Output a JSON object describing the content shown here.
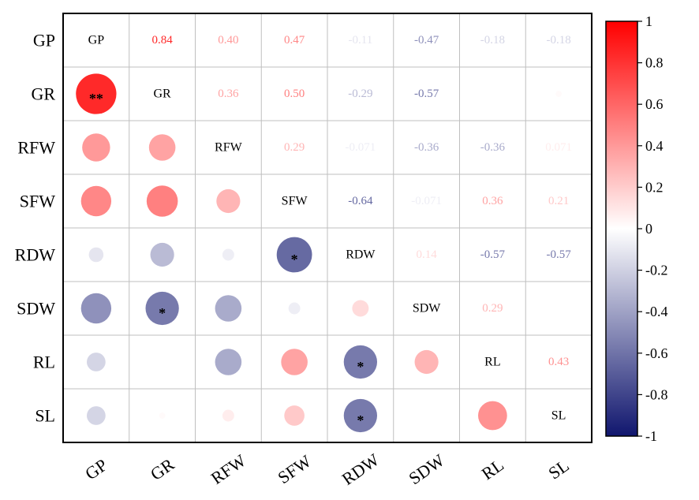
{
  "chart_data": {
    "type": "heatmap",
    "variables": [
      "GP",
      "GR",
      "RFW",
      "SFW",
      "RDW",
      "SDW",
      "RL",
      "SL"
    ],
    "upper_text": [
      [
        "",
        "0.84",
        "0.40",
        "0.47",
        "-0.11",
        "-0.47",
        "-0.18",
        "-0.18"
      ],
      [
        "",
        "",
        "0.36",
        "0.50",
        "-0.29",
        "-0.57",
        "",
        ""
      ],
      [
        "",
        "",
        "",
        "0.29",
        "-0.071",
        "-0.36",
        "-0.36",
        "0.071"
      ],
      [
        "",
        "",
        "",
        "",
        "-0.64",
        "-0.071",
        "0.36",
        "0.21"
      ],
      [
        "",
        "",
        "",
        "",
        "",
        "0.14",
        "-0.57",
        "-0.57"
      ],
      [
        "",
        "",
        "",
        "",
        "",
        "",
        "0.29",
        ""
      ],
      [
        "",
        "",
        "",
        "",
        "",
        "",
        "",
        "0.43"
      ],
      [
        "",
        "",
        "",
        "",
        "",
        "",
        "",
        ""
      ]
    ],
    "matrix": [
      [
        1,
        0.84,
        0.4,
        0.47,
        -0.11,
        -0.47,
        -0.18,
        -0.18
      ],
      [
        0.84,
        1,
        0.36,
        0.5,
        -0.29,
        -0.57,
        0,
        0.02
      ],
      [
        0.4,
        0.36,
        1,
        0.29,
        -0.071,
        -0.36,
        -0.36,
        0.071
      ],
      [
        0.47,
        0.5,
        0.29,
        1,
        -0.64,
        -0.071,
        0.36,
        0.21
      ],
      [
        -0.11,
        -0.29,
        -0.071,
        -0.64,
        1,
        0.14,
        -0.57,
        -0.57
      ],
      [
        -0.47,
        -0.57,
        -0.36,
        -0.071,
        0.14,
        1,
        0.29,
        0.0
      ],
      [
        -0.18,
        0,
        -0.36,
        0.36,
        -0.57,
        0.29,
        1,
        0.43
      ],
      [
        -0.18,
        0.02,
        0.071,
        0.21,
        -0.57,
        0.0,
        0.43,
        1
      ]
    ],
    "significance": [
      [
        "",
        "",
        "",
        "",
        "",
        "",
        "",
        ""
      ],
      [
        "**",
        "",
        "",
        "",
        "",
        "",
        "",
        ""
      ],
      [
        "",
        "",
        "",
        "",
        "",
        "",
        "",
        ""
      ],
      [
        "",
        "",
        "",
        "",
        "",
        "",
        "",
        ""
      ],
      [
        "",
        "",
        "",
        "*",
        "",
        "",
        "",
        ""
      ],
      [
        "",
        "*",
        "",
        "",
        "",
        "",
        "",
        ""
      ],
      [
        "",
        "",
        "",
        "",
        "*",
        "",
        "",
        ""
      ],
      [
        "",
        "",
        "",
        "",
        "*",
        "",
        "",
        ""
      ]
    ],
    "colorbar": {
      "range": [
        -1,
        1
      ],
      "ticks": [
        "1",
        "0.8",
        "0.6",
        "0.4",
        "0.2",
        "0",
        "-0.2",
        "-0.4",
        "-0.6",
        "-0.8",
        "-1"
      ],
      "colors": {
        "negative": "#10166e",
        "zero": "#ffffff",
        "positive": "#ff0000"
      }
    },
    "grid": true
  }
}
